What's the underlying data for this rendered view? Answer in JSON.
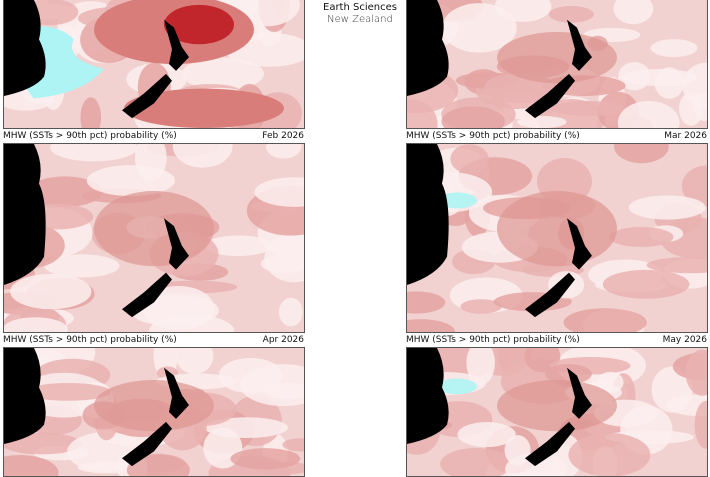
{
  "logo": {
    "line1": "Earth Sciences",
    "line2": "New Zealand"
  },
  "colors": {
    "land": "#000000",
    "low": "#fbefee",
    "mid": "#e9b3b1",
    "high": "#d97d7a",
    "very_high": "#c0262b",
    "negative": "#aef4f4"
  },
  "panels": [
    {
      "id": "jan",
      "caption": "",
      "month": "",
      "intensity": "high"
    },
    {
      "id": "feb-label-row",
      "caption": "MHW (SSTs > 90th pct) probability (%)",
      "month": "Feb 2026"
    },
    {
      "id": "mar-label-row",
      "caption": "MHW (SSTs > 90th pct) probability (%)",
      "month": "Mar 2026"
    },
    {
      "id": "apr-label-row",
      "caption": "MHW (SSTs > 90th pct) probability (%)",
      "month": "Apr 2026"
    },
    {
      "id": "may-label-row",
      "caption": "MHW (SSTs > 90th pct) probability (%)",
      "month": "May 2026"
    }
  ]
}
